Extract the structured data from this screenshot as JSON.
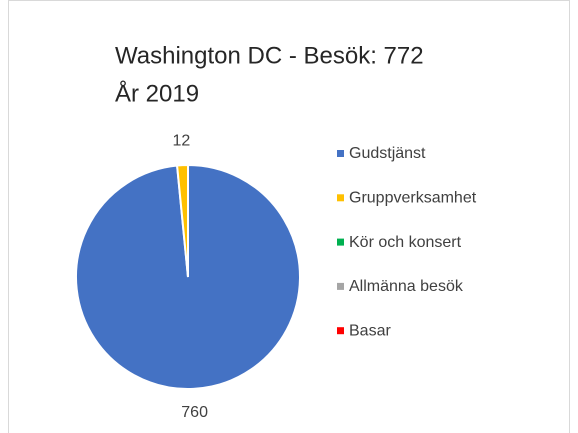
{
  "chart_data": {
    "type": "pie",
    "title": [
      "Washington DC - Besök: 772",
      "År 2019"
    ],
    "categories": [
      "Gudstjänst",
      "Gruppverksamhet",
      "Kör och konsert",
      "Allmänna besök",
      "Basar"
    ],
    "values": [
      760,
      12,
      0,
      0,
      0
    ],
    "colors": [
      "#4472c4",
      "#ffc000",
      "#00b050",
      "#a5a5a5",
      "#ff0000"
    ],
    "legend": "right"
  }
}
